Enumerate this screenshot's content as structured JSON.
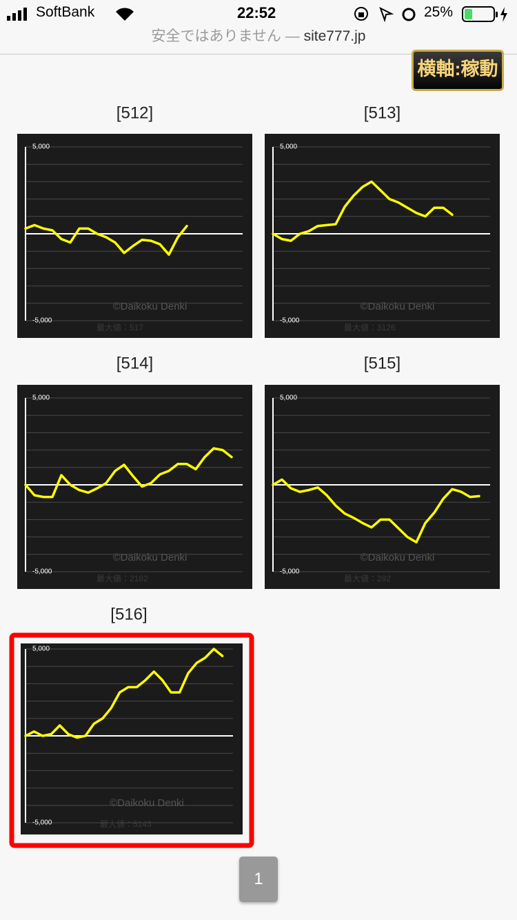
{
  "status_bar": {
    "carrier": "SoftBank",
    "time": "22:52",
    "battery": "25%"
  },
  "address_bar": {
    "security": "安全ではありません —",
    "host": "site777.jp"
  },
  "toggle_button": "横軸:稼動",
  "chart_data": [
    {
      "type": "line",
      "title": "[512]",
      "ylim": [
        -5000,
        5000
      ],
      "yticks": [
        {
          "value": 5000,
          "label": "5,000"
        },
        {
          "value": -5000,
          "label": "-5,000"
        }
      ],
      "series": [
        {
          "color": "#ffff00",
          "values": [
            300,
            500,
            300,
            200,
            -300,
            -500,
            300,
            300,
            0,
            -200,
            -500,
            -1100,
            -700,
            -350,
            -400,
            -600,
            -1200,
            -200,
            450,
            null,
            null,
            null,
            null,
            null,
            null
          ]
        }
      ],
      "watermark": "©Daikoku Denki",
      "annotation": "最大値：517"
    },
    {
      "type": "line",
      "title": "[513]",
      "ylim": [
        -5000,
        5000
      ],
      "yticks": [
        {
          "value": 5000,
          "label": "5,000"
        },
        {
          "value": -5000,
          "label": "-5,000"
        }
      ],
      "series": [
        {
          "color": "#ffff00",
          "values": [
            0,
            -300,
            -400,
            0,
            150,
            450,
            500,
            550,
            1550,
            2200,
            2700,
            3000,
            2500,
            2000,
            1800,
            1500,
            1200,
            1000,
            1500,
            1500,
            1100,
            null,
            null,
            null,
            null
          ]
        }
      ],
      "watermark": "©Daikoku Denki",
      "annotation": "最大値：3126"
    },
    {
      "type": "line",
      "title": "[514]",
      "ylim": [
        -5000,
        5000
      ],
      "yticks": [
        {
          "value": 5000,
          "label": "5,000"
        },
        {
          "value": -5000,
          "label": "-5,000"
        }
      ],
      "series": [
        {
          "color": "#ffff00",
          "values": [
            0,
            -600,
            -700,
            -700,
            550,
            0,
            -300,
            -450,
            -200,
            100,
            800,
            1150,
            500,
            -100,
            100,
            600,
            800,
            1200,
            1200,
            900,
            1600,
            2100,
            2000,
            1600,
            null
          ]
        }
      ],
      "watermark": "©Daikoku Denki",
      "annotation": "最大値：2182"
    },
    {
      "type": "line",
      "title": "[515]",
      "ylim": [
        -5000,
        5000
      ],
      "yticks": [
        {
          "value": 5000,
          "label": "5,000"
        },
        {
          "value": -5000,
          "label": "-5,000"
        }
      ],
      "series": [
        {
          "color": "#ffff00",
          "values": [
            0,
            300,
            -200,
            -400,
            -300,
            -150,
            -600,
            -1200,
            -1650,
            -1900,
            -2200,
            -2450,
            -2000,
            -2000,
            -2500,
            -3000,
            -3300,
            -2200,
            -1600,
            -800,
            -250,
            -400,
            -700,
            -650,
            null
          ]
        }
      ],
      "watermark": "©Daikoku Denki",
      "annotation": "最大値：292"
    },
    {
      "type": "line",
      "title": "[516]",
      "ylim": [
        -5000,
        5000
      ],
      "selected": true,
      "yticks": [
        {
          "value": 5000,
          "label": "5,000"
        },
        {
          "value": -5000,
          "label": "-5,000"
        }
      ],
      "series": [
        {
          "color": "#ffff00",
          "values": [
            0,
            250,
            0,
            100,
            600,
            100,
            -100,
            0,
            700,
            1000,
            1600,
            2500,
            2800,
            2800,
            3200,
            3700,
            3200,
            2500,
            2500,
            3600,
            4200,
            4500,
            5000,
            4600,
            null
          ]
        }
      ],
      "watermark": "©Daikoku Denki",
      "annotation": "最大値：5143"
    }
  ],
  "pagination": {
    "pages": [
      "1"
    ]
  }
}
